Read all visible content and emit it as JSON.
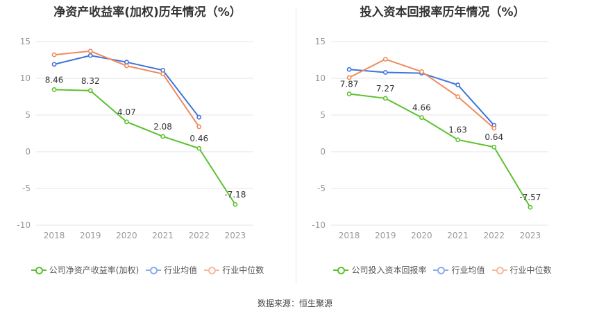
{
  "source_label": "数据来源：恒生聚源",
  "colors": {
    "company": "#5cc12f",
    "industry_avg": "#3e74da",
    "industry_median": "#f08a5d",
    "grid": "#e6e6e6",
    "tick": "#999999"
  },
  "chart_data": [
    {
      "type": "line",
      "title": "净资产收益率(加权)历年情况（%）",
      "x": [
        "2018",
        "2019",
        "2020",
        "2021",
        "2022",
        "2023"
      ],
      "ylim": [
        -10,
        15
      ],
      "yticks": [
        "15",
        "10",
        "5",
        "0",
        "-5",
        "-10"
      ],
      "grid": true,
      "legend_position": "bottom",
      "series": [
        {
          "name": "公司净资产收益率(加权)",
          "color": "#5cc12f",
          "values": [
            8.46,
            8.32,
            4.07,
            2.08,
            0.46,
            -7.18
          ],
          "labels": [
            "8.46",
            "8.32",
            "4.07",
            "2.08",
            "0.46",
            "-7.18"
          ]
        },
        {
          "name": "行业均值",
          "color": "#3e74da",
          "values": [
            11.9,
            13.1,
            12.2,
            11.1,
            4.7,
            null
          ]
        },
        {
          "name": "行业中位数",
          "color": "#f08a5d",
          "values": [
            13.2,
            13.7,
            11.7,
            10.6,
            3.4,
            null
          ]
        }
      ]
    },
    {
      "type": "line",
      "title": "投入资本回报率历年情况（%）",
      "x": [
        "2018",
        "2019",
        "2020",
        "2021",
        "2022",
        "2023"
      ],
      "ylim": [
        -10,
        15
      ],
      "yticks": [
        "15",
        "10",
        "5",
        "0",
        "-5",
        "-10"
      ],
      "grid": true,
      "legend_position": "bottom",
      "series": [
        {
          "name": "公司投入资本回报率",
          "color": "#5cc12f",
          "values": [
            7.87,
            7.27,
            4.66,
            1.63,
            0.64,
            -7.57
          ],
          "labels": [
            "7.87",
            "7.27",
            "4.66",
            "1.63",
            "0.64",
            "-7.57"
          ]
        },
        {
          "name": "行业均值",
          "color": "#3e74da",
          "values": [
            11.2,
            10.8,
            10.7,
            9.1,
            3.6,
            null
          ]
        },
        {
          "name": "行业中位数",
          "color": "#f08a5d",
          "values": [
            10.1,
            12.6,
            10.9,
            7.5,
            3.2,
            null
          ]
        }
      ]
    }
  ]
}
